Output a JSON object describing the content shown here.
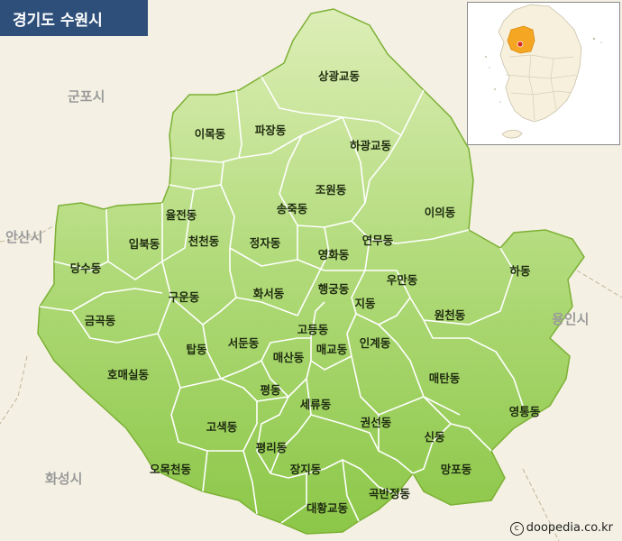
{
  "title": "경기도 수원시",
  "credit": "doopedia.co.kr",
  "colors": {
    "land": "#9ccf58",
    "land_light": "#d9ecb2",
    "border": "#ffffff",
    "outside": "#f4f1e4",
    "title_bg": "#2e4f7a",
    "neighbor_text": "#9a9a9a"
  },
  "neighbors": [
    "군포시",
    "안산시",
    "화성시",
    "용인시"
  ],
  "districts": [
    "상광교동",
    "이목동",
    "파장동",
    "하광교동",
    "조원동",
    "송죽동",
    "이의동",
    "율전동",
    "입북동",
    "천천동",
    "정자동",
    "연무동",
    "영화동",
    "당수동",
    "하동",
    "우만동",
    "행궁동",
    "화서동",
    "구운동",
    "지동",
    "원천동",
    "금곡동",
    "고등동",
    "서둔동",
    "인계동",
    "탑동",
    "매교동",
    "매산동",
    "호매실동",
    "매탄동",
    "평동",
    "세류동",
    "영통동",
    "고색동",
    "권선동",
    "신동",
    "평리동",
    "오목천동",
    "장지동",
    "망포동",
    "곡반정동",
    "대황교동"
  ],
  "inset": {
    "highlight": "#f5a623",
    "land": "#f7f0dc",
    "sea": "#ffffff"
  }
}
